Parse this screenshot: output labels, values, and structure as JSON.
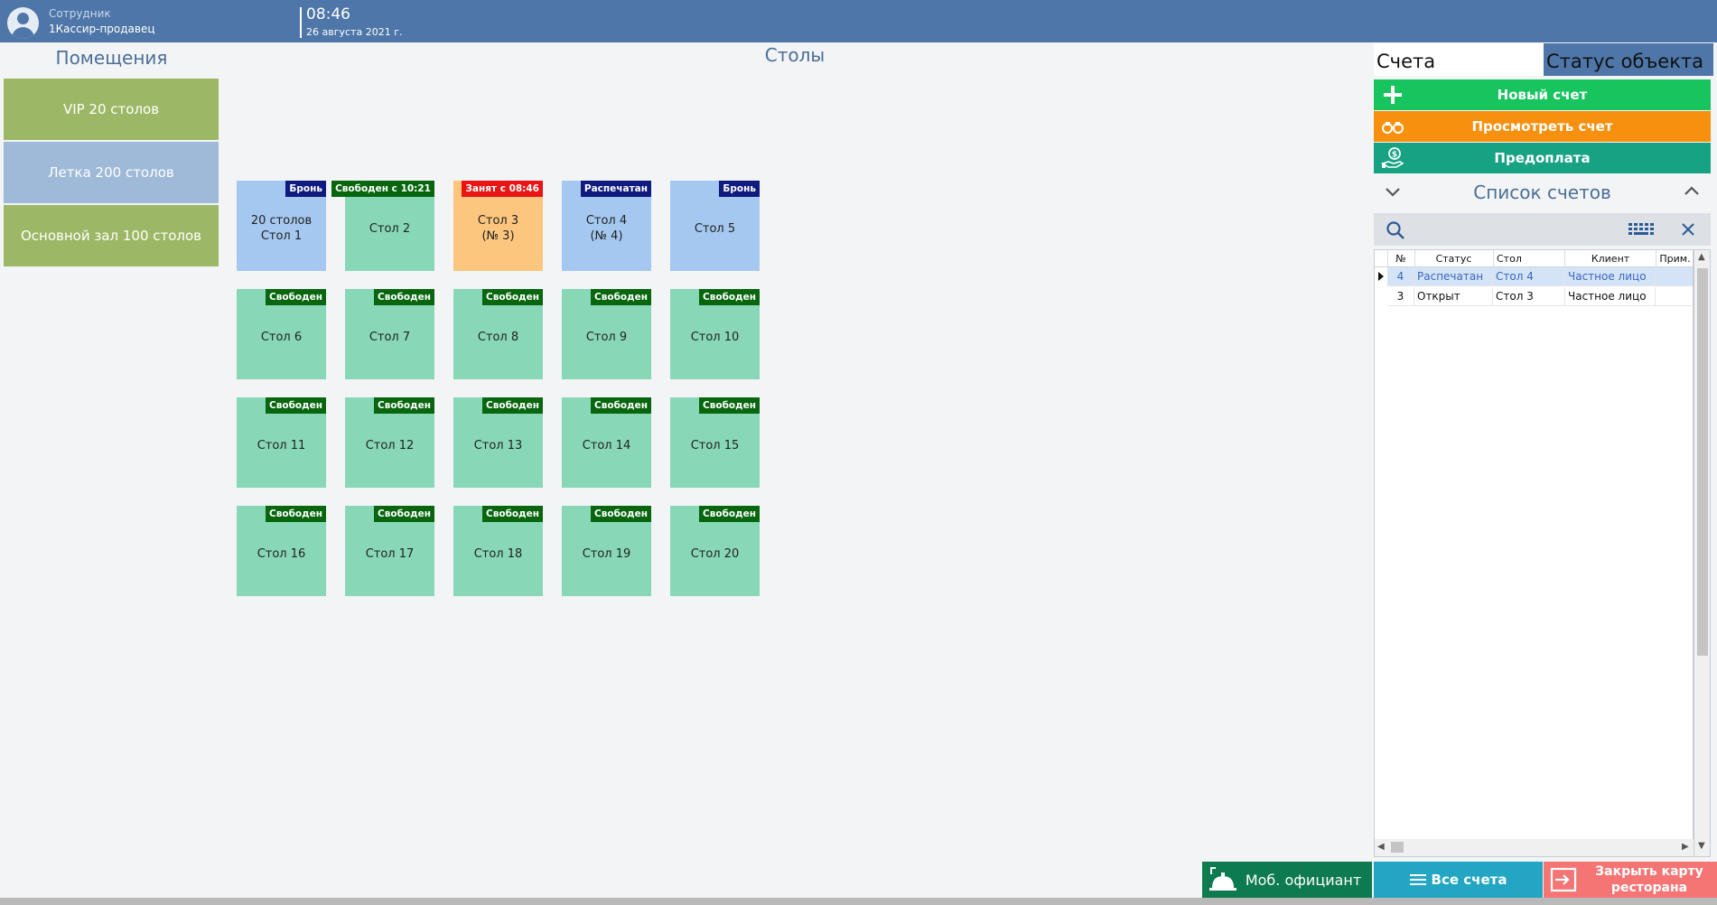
{
  "header": {
    "employee_label": "Сотрудник",
    "employee_name": "1Кассир-продавец",
    "time": "08:46",
    "date": "26 августа 2021 г."
  },
  "rooms": {
    "title": "Помещения",
    "items": [
      {
        "label": "VIP 20 столов",
        "color": "#9cb866"
      },
      {
        "label": "Летка 200 столов",
        "color": "#9fbad8"
      },
      {
        "label": "Основной зал 100 столов",
        "color": "#9cb866"
      }
    ]
  },
  "tables": {
    "title": "Столы",
    "items": [
      {
        "tag": "Бронь",
        "status": "bron",
        "line1": "20 столов",
        "line2": "Стол 1"
      },
      {
        "tag": "Свободен с 10:21",
        "status": "free",
        "line1": "Стол 2",
        "line2": ""
      },
      {
        "tag": "Занят с 08:46",
        "status": "busy",
        "line1": "Стол 3",
        "line2": "(№ 3)"
      },
      {
        "tag": "Распечатан",
        "status": "bron",
        "line1": "Стол 4",
        "line2": "(№ 4)"
      },
      {
        "tag": "Бронь",
        "status": "bron",
        "line1": "Стол 5",
        "line2": ""
      },
      {
        "tag": "Свободен",
        "status": "free",
        "line1": "Стол 6",
        "line2": ""
      },
      {
        "tag": "Свободен",
        "status": "free",
        "line1": "Стол 7",
        "line2": ""
      },
      {
        "tag": "Свободен",
        "status": "free",
        "line1": "Стол 8",
        "line2": ""
      },
      {
        "tag": "Свободен",
        "status": "free",
        "line1": "Стол 9",
        "line2": ""
      },
      {
        "tag": "Свободен",
        "status": "free",
        "line1": "Стол 10",
        "line2": ""
      },
      {
        "tag": "Свободен",
        "status": "free",
        "line1": "Стол 11",
        "line2": ""
      },
      {
        "tag": "Свободен",
        "status": "free",
        "line1": "Стол 12",
        "line2": ""
      },
      {
        "tag": "Свободен",
        "status": "free",
        "line1": "Стол 13",
        "line2": ""
      },
      {
        "tag": "Свободен",
        "status": "free",
        "line1": "Стол 14",
        "line2": ""
      },
      {
        "tag": "Свободен",
        "status": "free",
        "line1": "Стол 15",
        "line2": ""
      },
      {
        "tag": "Свободен",
        "status": "free",
        "line1": "Стол 16",
        "line2": ""
      },
      {
        "tag": "Свободен",
        "status": "free",
        "line1": "Стол 17",
        "line2": ""
      },
      {
        "tag": "Свободен",
        "status": "free",
        "line1": "Стол 18",
        "line2": ""
      },
      {
        "tag": "Свободен",
        "status": "free",
        "line1": "Стол 19",
        "line2": ""
      },
      {
        "tag": "Свободен",
        "status": "free",
        "line1": "Стол 20",
        "line2": ""
      }
    ]
  },
  "right": {
    "tab_accounts": "Счета",
    "tab_status": "Статус объекта",
    "buttons": [
      {
        "label": "Новый счет",
        "icon": "plus-icon",
        "color": "#17c45e"
      },
      {
        "label": "Просмотреть счет",
        "icon": "binoculars-icon",
        "color": "#f7900f"
      },
      {
        "label": "Предоплата",
        "icon": "money-hand-icon",
        "color": "#16a283"
      }
    ],
    "list_title": "Список счетов",
    "columns": [
      "№",
      "Статус",
      "Стол",
      "Клиент",
      "Прим."
    ],
    "rows": [
      {
        "num": "4",
        "status": "Распечатан",
        "table": "Стол 4",
        "client": "Частное лицо",
        "note": "",
        "selected": true
      },
      {
        "num": "3",
        "status": "Открыт",
        "table": "Стол 3",
        "client": "Частное лицо",
        "note": "",
        "selected": false
      }
    ]
  },
  "bottom": {
    "waiter": "Моб. официант",
    "all_accounts": "Все счета",
    "close_map": "Закрыть карту ресторана",
    "colors": {
      "waiter": "#0d7a50",
      "all": "#22a6c4",
      "close": "#f57575"
    }
  }
}
